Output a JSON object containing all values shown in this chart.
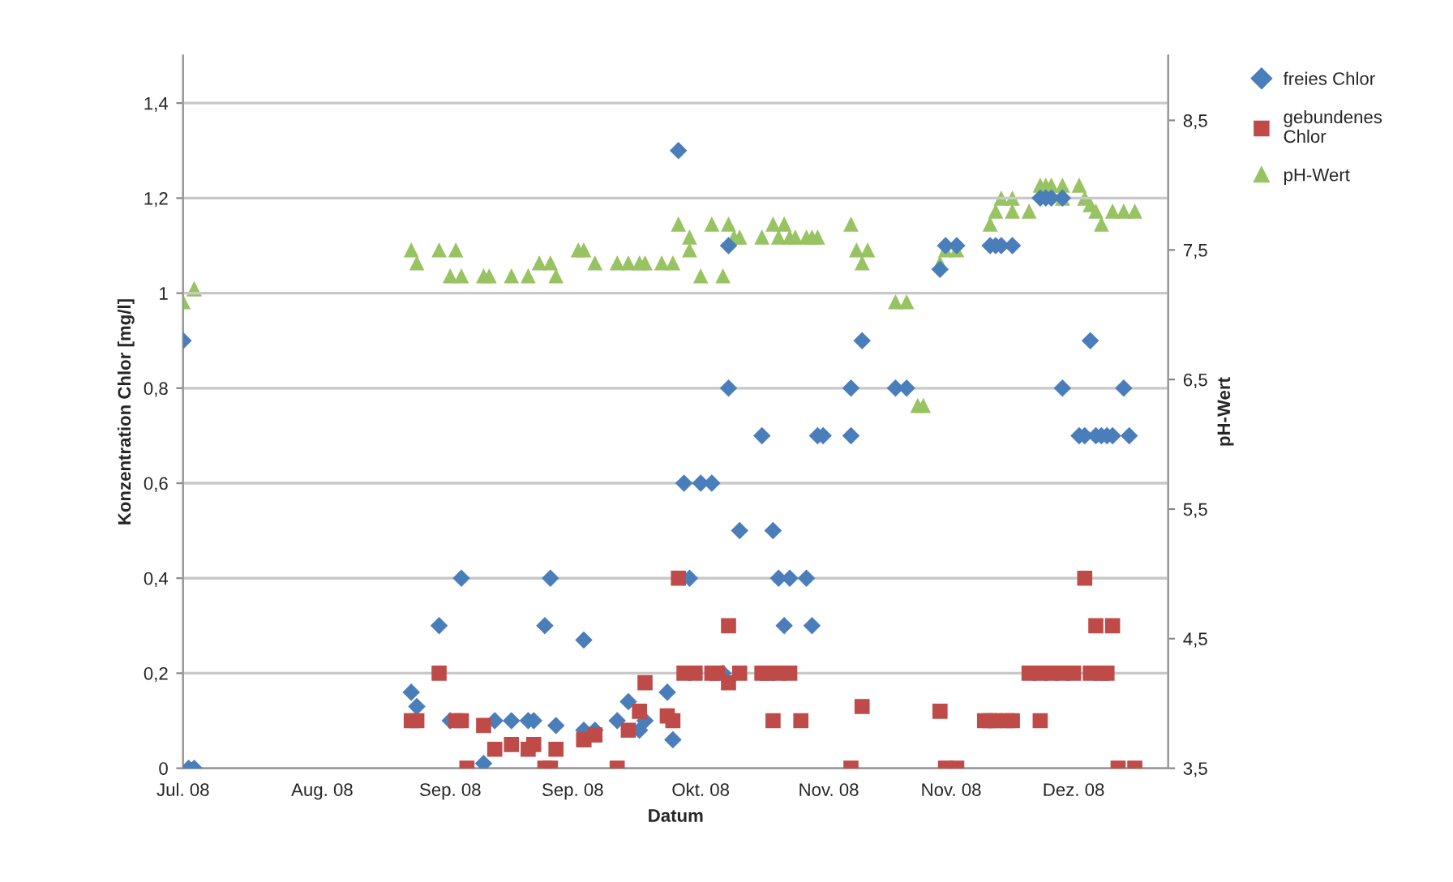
{
  "chart_data": {
    "type": "scatter",
    "xlabel": "Datum",
    "ylabel": "Konzentration Chlor [mg/l]",
    "y2label": "pH-Wert",
    "xlim": [
      "2008-07-15",
      "2009-01-08"
    ],
    "xticks": [
      {
        "value": "2008-07-15",
        "label": "Jul. 08"
      },
      {
        "value": "2008-08-09",
        "label": "Aug. 08"
      },
      {
        "value": "2008-09-01",
        "label": "Sep. 08"
      },
      {
        "value": "2008-09-23",
        "label": "Sep. 08"
      },
      {
        "value": "2008-10-16",
        "label": "Okt. 08"
      },
      {
        "value": "2008-11-08",
        "label": "Nov. 08"
      },
      {
        "value": "2008-11-30",
        "label": "Nov. 08"
      },
      {
        "value": "2008-12-22",
        "label": "Dez. 08"
      }
    ],
    "ylim": [
      0,
      1.5
    ],
    "yticks": [
      {
        "value": 0,
        "label": "0"
      },
      {
        "value": 0.2,
        "label": "0,2"
      },
      {
        "value": 0.4,
        "label": "0,4"
      },
      {
        "value": 0.6,
        "label": "0,6"
      },
      {
        "value": 0.8,
        "label": "0,8"
      },
      {
        "value": 1,
        "label": "1"
      },
      {
        "value": 1.2,
        "label": "1,2"
      },
      {
        "value": 1.4,
        "label": "1,4"
      }
    ],
    "y2lim": [
      3.5,
      9.0
    ],
    "y2ticks": [
      {
        "value": 3.5,
        "label": "3,5"
      },
      {
        "value": 4.5,
        "label": "4,5"
      },
      {
        "value": 5.5,
        "label": "5,5"
      },
      {
        "value": 6.5,
        "label": "6,5"
      },
      {
        "value": 7.5,
        "label": "7,5"
      },
      {
        "value": 8.5,
        "label": "8,5"
      }
    ],
    "grid": "y",
    "legend": "right",
    "series": [
      {
        "name": "freies Chlor",
        "color": "#4a7ebb",
        "marker": "diamond",
        "x": [
          "2008-07-15",
          "2008-07-16",
          "2008-07-17",
          "2008-08-25",
          "2008-08-26",
          "2008-08-30",
          "2008-09-01",
          "2008-09-03",
          "2008-09-07",
          "2008-09-09",
          "2008-09-12",
          "2008-09-15",
          "2008-09-16",
          "2008-09-18",
          "2008-09-19",
          "2008-09-20",
          "2008-09-25",
          "2008-09-25",
          "2008-09-27",
          "2008-10-01",
          "2008-10-03",
          "2008-10-05",
          "2008-10-06",
          "2008-10-10",
          "2008-10-11",
          "2008-10-12",
          "2008-10-13",
          "2008-10-14",
          "2008-10-16",
          "2008-10-18",
          "2008-10-20",
          "2008-10-21",
          "2008-10-21",
          "2008-10-23",
          "2008-10-27",
          "2008-10-29",
          "2008-10-30",
          "2008-10-31",
          "2008-11-01",
          "2008-11-04",
          "2008-11-05",
          "2008-11-06",
          "2008-11-07",
          "2008-11-12",
          "2008-11-12",
          "2008-11-14",
          "2008-11-20",
          "2008-11-22",
          "2008-11-28",
          "2008-11-29",
          "2008-12-01",
          "2008-12-07",
          "2008-12-08",
          "2008-12-09",
          "2008-12-11",
          "2008-12-16",
          "2008-12-17",
          "2008-12-18",
          "2008-12-20",
          "2008-12-20",
          "2008-12-23",
          "2008-12-24",
          "2008-12-25",
          "2008-12-26",
          "2008-12-27",
          "2008-12-28",
          "2008-12-29",
          "2008-12-31",
          "2009-01-01"
        ],
        "values": [
          0.9,
          0,
          0,
          0.16,
          0.13,
          0.3,
          0.1,
          0.4,
          0.01,
          0.1,
          0.1,
          0.1,
          0.1,
          0.3,
          0.4,
          0.09,
          0.08,
          0.27,
          0.08,
          0.1,
          0.14,
          0.08,
          0.1,
          0.16,
          0.06,
          1.3,
          0.6,
          0.4,
          0.6,
          0.6,
          0.2,
          1.1,
          0.8,
          0.5,
          0.7,
          0.5,
          0.4,
          0.3,
          0.4,
          0.4,
          0.3,
          0.7,
          0.7,
          0.8,
          0.7,
          0.9,
          0.8,
          0.8,
          1.05,
          1.1,
          1.1,
          1.1,
          1.1,
          1.1,
          1.1,
          1.2,
          1.2,
          1.2,
          1.2,
          0.8,
          0.7,
          0.7,
          0.9,
          0.7,
          0.7,
          0.7,
          0.7,
          0.8,
          0.7
        ]
      },
      {
        "name": "gebundenes\nChlor",
        "color": "#be4b48",
        "marker": "square",
        "x": [
          "2008-08-25",
          "2008-08-26",
          "2008-08-30",
          "2008-09-02",
          "2008-09-03",
          "2008-09-04",
          "2008-09-07",
          "2008-09-09",
          "2008-09-12",
          "2008-09-15",
          "2008-09-16",
          "2008-09-18",
          "2008-09-19",
          "2008-09-20",
          "2008-09-25",
          "2008-09-25",
          "2008-09-27",
          "2008-10-01",
          "2008-10-03",
          "2008-10-05",
          "2008-10-06",
          "2008-10-10",
          "2008-10-11",
          "2008-10-12",
          "2008-10-13",
          "2008-10-15",
          "2008-10-18",
          "2008-10-19",
          "2008-10-21",
          "2008-10-21",
          "2008-10-23",
          "2008-10-27",
          "2008-10-28",
          "2008-10-29",
          "2008-10-30",
          "2008-11-01",
          "2008-11-03",
          "2008-11-12",
          "2008-11-14",
          "2008-11-28",
          "2008-11-29",
          "2008-12-01",
          "2008-12-06",
          "2008-12-07",
          "2008-12-08",
          "2008-12-10",
          "2008-12-11",
          "2008-12-14",
          "2008-12-16",
          "2008-12-16",
          "2008-12-18",
          "2008-12-20",
          "2008-12-22",
          "2008-12-24",
          "2008-12-25",
          "2008-12-26",
          "2008-12-27",
          "2008-12-28",
          "2008-12-29",
          "2008-12-30",
          "2009-01-02"
        ],
        "values": [
          0.1,
          0.1,
          0.2,
          0.1,
          0.1,
          0,
          0.09,
          0.04,
          0.05,
          0.04,
          0.05,
          0,
          0,
          0.04,
          0.06,
          0.06,
          0.07,
          0,
          0.08,
          0.12,
          0.18,
          0.11,
          0.1,
          0.4,
          0.2,
          0.2,
          0.2,
          0.2,
          0.3,
          0.18,
          0.2,
          0.2,
          0.2,
          0.1,
          0.2,
          0.2,
          0.1,
          0,
          0.13,
          0.12,
          0,
          0,
          0.1,
          0.1,
          0.1,
          0.1,
          0.1,
          0.2,
          0.1,
          0.2,
          0.2,
          0.2,
          0.2,
          0.4,
          0.2,
          0.3,
          0.2,
          0.2,
          0.3,
          0,
          0
        ]
      },
      {
        "name": "pH-Wert",
        "color": "#98c363",
        "marker": "triangle",
        "axis": "y2",
        "x": [
          "2008-07-15",
          "2008-07-17",
          "2008-07-17",
          "2008-08-25",
          "2008-08-26",
          "2008-08-30",
          "2008-09-01",
          "2008-09-02",
          "2008-09-03",
          "2008-09-07",
          "2008-09-08",
          "2008-09-12",
          "2008-09-15",
          "2008-09-17",
          "2008-09-19",
          "2008-09-20",
          "2008-09-24",
          "2008-09-25",
          "2008-09-27",
          "2008-10-01",
          "2008-10-03",
          "2008-10-05",
          "2008-10-06",
          "2008-10-09",
          "2008-10-11",
          "2008-10-12",
          "2008-10-14",
          "2008-10-14",
          "2008-10-16",
          "2008-10-18",
          "2008-10-20",
          "2008-10-21",
          "2008-10-22",
          "2008-10-23",
          "2008-10-27",
          "2008-10-29",
          "2008-10-30",
          "2008-10-31",
          "2008-11-01",
          "2008-11-02",
          "2008-11-04",
          "2008-11-05",
          "2008-11-06",
          "2008-11-12",
          "2008-11-13",
          "2008-11-14",
          "2008-11-15",
          "2008-11-20",
          "2008-11-22",
          "2008-11-24",
          "2008-11-25",
          "2008-11-28",
          "2008-11-29",
          "2008-12-01",
          "2008-12-07",
          "2008-12-08",
          "2008-12-09",
          "2008-12-11",
          "2008-12-11",
          "2008-12-14",
          "2008-12-16",
          "2008-12-17",
          "2008-12-18",
          "2008-12-20",
          "2008-12-20",
          "2008-12-23",
          "2008-12-24",
          "2008-12-25",
          "2008-12-26",
          "2008-12-27",
          "2008-12-29",
          "2008-12-31",
          "2009-01-02"
        ],
        "values": [
          7.1,
          7.2,
          7.2,
          7.5,
          7.4,
          7.5,
          7.3,
          7.5,
          7.3,
          7.3,
          7.3,
          7.3,
          7.3,
          7.4,
          7.4,
          7.3,
          7.5,
          7.5,
          7.4,
          7.4,
          7.4,
          7.4,
          7.4,
          7.4,
          7.4,
          7.7,
          7.5,
          7.6,
          7.3,
          7.7,
          7.3,
          7.7,
          7.6,
          7.6,
          7.6,
          7.7,
          7.6,
          7.7,
          7.6,
          7.6,
          7.6,
          7.6,
          7.6,
          7.7,
          7.5,
          7.4,
          7.5,
          7.1,
          7.1,
          6.3,
          6.3,
          7.4,
          7.5,
          7.5,
          7.7,
          7.8,
          7.9,
          7.8,
          7.9,
          7.8,
          8.0,
          8.0,
          8.0,
          7.9,
          8.0,
          8.0,
          7.9,
          7.85,
          7.8,
          7.7,
          7.8,
          7.8,
          7.8
        ]
      }
    ]
  }
}
